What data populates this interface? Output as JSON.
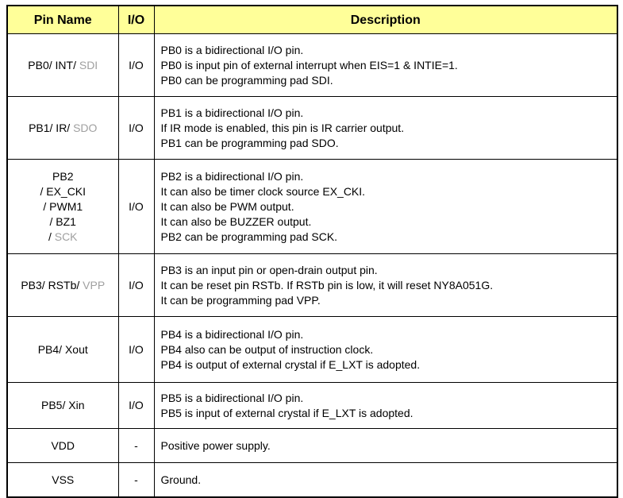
{
  "colors": {
    "header_bg": "#FFFF99",
    "border": "#000000",
    "text": "#000000",
    "gray_text": "#A0A0A0"
  },
  "table": {
    "headers": {
      "pin": "Pin Name",
      "io": "I/O",
      "desc": "Description"
    },
    "rows": [
      {
        "pin": "PB0/ INT/ ",
        "pin_gray": "SDI",
        "io": "I/O",
        "desc": "PB0 is a bidirectional I/O pin.\nPB0 is input pin of external interrupt when EIS=1 & INTIE=1.\nPB0 can be programming pad SDI."
      },
      {
        "pin": "PB1/ IR/ ",
        "pin_gray": "SDO",
        "io": "I/O",
        "desc": "PB1 is a bidirectional I/O pin.\nIf IR mode is enabled, this pin is IR carrier output.\nPB1 can be programming pad SDO."
      },
      {
        "pin": "PB2\n/ EX_CKI\n/ PWM1\n/ BZ1\n/ ",
        "pin_gray": "SCK",
        "io": "I/O",
        "desc": "PB2 is a bidirectional I/O pin.\nIt can also be timer clock source EX_CKI.\nIt can also be PWM output.\nIt can also be BUZZER output.\nPB2 can be programming pad SCK."
      },
      {
        "pin": "PB3/ RSTb/ ",
        "pin_gray": "VPP",
        "io": "I/O",
        "desc": "PB3 is an input pin or open-drain output pin.\nIt can be reset pin RSTb. If RSTb pin is low, it will reset NY8A051G.\nIt can be programming pad VPP."
      },
      {
        "pin": "PB4/ Xout",
        "pin_gray": "",
        "io": "I/O",
        "desc": "PB4 is a bidirectional I/O pin.\nPB4 also can be output of instruction clock.\nPB4 is output of external crystal if E_LXT is adopted."
      },
      {
        "pin": "PB5/ Xin",
        "pin_gray": "",
        "io": "I/O",
        "desc": "PB5 is a bidirectional I/O pin.\nPB5 is input of external crystal if E_LXT is adopted."
      },
      {
        "pin": "VDD",
        "pin_gray": "",
        "io": "-",
        "desc": "Positive power supply."
      },
      {
        "pin": "VSS",
        "pin_gray": "",
        "io": "-",
        "desc": "Ground."
      }
    ]
  }
}
